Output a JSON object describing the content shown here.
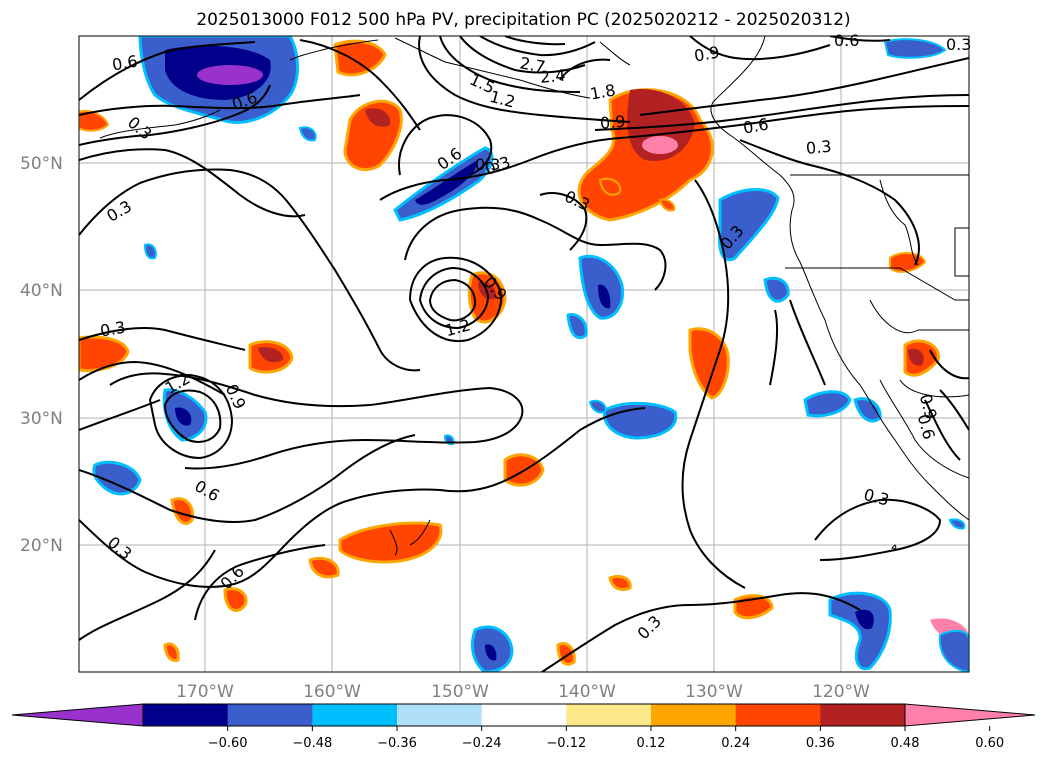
{
  "title": "2025013000 F012 500 hPa PV, precipitation PC (2025020212 - 2025020312)",
  "latitude_labels": [
    "50°N",
    "40°N",
    "30°N",
    "20°N"
  ],
  "longitude_labels": [
    "170°W",
    "160°W",
    "150°W",
    "140°W",
    "130°W",
    "120°W"
  ],
  "contour_labels": [
    "0.6",
    "0.3",
    "0.6",
    "0.3",
    "2.7",
    "2.4",
    "1.5",
    "1.2",
    "1.8",
    "0.9",
    "0.9",
    "0.6",
    "0.3",
    "0.6",
    "0.3",
    "0.3",
    "0.6",
    "0.9",
    "1.2",
    "0.3",
    "0.3",
    "1.2",
    "0.9",
    "0.6",
    "0.3",
    "0.6",
    "0.3",
    "0.3",
    "0.9",
    "0.6",
    "0.3",
    "0.3"
  ],
  "colorbar": {
    "ticks": [
      "−0.60",
      "−0.48",
      "−0.36",
      "−0.24",
      "−0.12",
      "0.12",
      "0.24",
      "0.36",
      "0.48",
      "0.60"
    ],
    "colors": [
      "#9932cc",
      "#00008b",
      "#3a5fcd",
      "#00bfff",
      "#b0e0f8",
      "#ffffff",
      "#fde98a",
      "#ffa500",
      "#ff4500",
      "#b22222",
      "#ff80a8"
    ]
  }
}
